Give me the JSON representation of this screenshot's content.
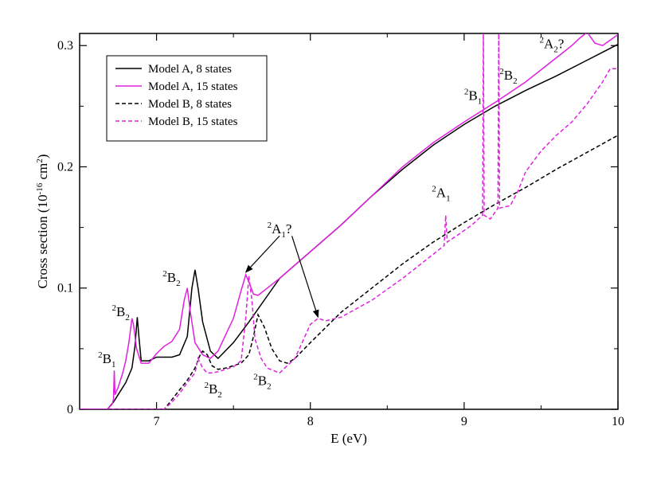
{
  "chart_data": {
    "type": "line",
    "xlabel": "E (eV)",
    "ylabel": {
      "main": "Cross section (10",
      "exp": "-16",
      "mid": " cm",
      "exp2": "2",
      "end": ")"
    },
    "xlim": [
      6.5,
      10
    ],
    "ylim": [
      0,
      0.31
    ],
    "xticks": [
      7,
      8,
      9,
      10
    ],
    "yticks": [
      0,
      0.1,
      0.2,
      0.3
    ],
    "xtick_labels": [
      "7",
      "8",
      "9",
      "10"
    ],
    "ytick_labels": [
      "0",
      "0.1",
      "0.2",
      "0.3"
    ],
    "grid": false,
    "legend_position": "top-left",
    "colors": {
      "black": "#000000",
      "magenta": "#e020e0"
    },
    "series": [
      {
        "name": "Model A, 8 states",
        "color": "#000000",
        "dash": "solid",
        "x": [
          6.68,
          6.72,
          6.76,
          6.8,
          6.84,
          6.86,
          6.875,
          6.885,
          6.9,
          6.95,
          7.0,
          7.05,
          7.1,
          7.15,
          7.2,
          7.23,
          7.25,
          7.27,
          7.3,
          7.35,
          7.4,
          7.5,
          7.6,
          7.7,
          7.8,
          8.0,
          8.2,
          8.4,
          8.6,
          8.8,
          9.0,
          9.2,
          9.4,
          9.6,
          9.8,
          10.0
        ],
        "y": [
          0.0,
          0.006,
          0.014,
          0.022,
          0.034,
          0.052,
          0.076,
          0.06,
          0.04,
          0.04,
          0.043,
          0.043,
          0.043,
          0.045,
          0.06,
          0.1,
          0.115,
          0.1,
          0.072,
          0.048,
          0.042,
          0.055,
          0.072,
          0.09,
          0.108,
          0.13,
          0.152,
          0.176,
          0.198,
          0.218,
          0.235,
          0.25,
          0.263,
          0.275,
          0.288,
          0.301
        ]
      },
      {
        "name": "Model A, 15 states",
        "color": "#e020e0",
        "dash": "solid",
        "x": [
          6.68,
          6.71,
          6.72,
          6.725,
          6.73,
          6.75,
          6.78,
          6.8,
          6.82,
          6.84,
          6.85,
          6.87,
          6.9,
          6.95,
          7.0,
          7.05,
          7.1,
          7.15,
          7.18,
          7.2,
          7.22,
          7.25,
          7.3,
          7.35,
          7.4,
          7.5,
          7.55,
          7.58,
          7.6,
          7.63,
          7.66,
          7.7,
          7.8,
          8.0,
          8.2,
          8.4,
          8.6,
          8.8,
          9.0,
          9.2,
          9.4,
          9.6,
          9.7,
          9.75,
          9.8,
          9.85,
          9.9,
          10.0
        ],
        "y": [
          0.0,
          0.004,
          0.008,
          0.032,
          0.012,
          0.018,
          0.03,
          0.04,
          0.055,
          0.075,
          0.07,
          0.05,
          0.038,
          0.038,
          0.046,
          0.052,
          0.056,
          0.066,
          0.09,
          0.1,
          0.08,
          0.055,
          0.045,
          0.042,
          0.048,
          0.075,
          0.098,
          0.111,
          0.105,
          0.095,
          0.094,
          0.098,
          0.108,
          0.13,
          0.152,
          0.176,
          0.2,
          0.22,
          0.237,
          0.253,
          0.27,
          0.29,
          0.3,
          0.306,
          0.311,
          0.302,
          0.3,
          0.309
        ]
      },
      {
        "name": "Model B, 8 states",
        "color": "#000000",
        "dash": "dashed",
        "x": [
          7.05,
          7.1,
          7.15,
          7.2,
          7.25,
          7.28,
          7.3,
          7.33,
          7.36,
          7.4,
          7.45,
          7.5,
          7.55,
          7.6,
          7.63,
          7.66,
          7.7,
          7.75,
          7.8,
          7.85,
          7.9,
          8.0,
          8.2,
          8.4,
          8.6,
          8.8,
          9.0,
          9.2,
          9.4,
          9.6,
          9.8,
          10.0
        ],
        "y": [
          0.0,
          0.008,
          0.016,
          0.024,
          0.034,
          0.044,
          0.048,
          0.045,
          0.036,
          0.033,
          0.034,
          0.036,
          0.038,
          0.045,
          0.06,
          0.078,
          0.068,
          0.05,
          0.04,
          0.038,
          0.042,
          0.055,
          0.08,
          0.1,
          0.12,
          0.138,
          0.154,
          0.169,
          0.183,
          0.198,
          0.212,
          0.226
        ]
      },
      {
        "name": "Model B, 15 states",
        "color": "#e020e0",
        "dash": "dashed",
        "x": [
          7.05,
          7.1,
          7.15,
          7.2,
          7.25,
          7.27,
          7.3,
          7.33,
          7.36,
          7.4,
          7.45,
          7.5,
          7.55,
          7.58,
          7.6,
          7.62,
          7.64,
          7.68,
          7.72,
          7.8,
          7.9,
          8.0,
          8.05,
          8.1,
          8.2,
          8.4,
          8.6,
          8.8,
          8.87,
          8.88,
          8.89,
          8.95,
          9.05,
          9.12,
          9.125,
          9.13,
          9.17,
          9.22,
          9.225,
          9.23,
          9.3,
          9.35,
          9.4,
          9.5,
          9.6,
          9.7,
          9.8,
          9.9,
          9.95,
          10.0
        ],
        "y": [
          0.0,
          0.006,
          0.013,
          0.022,
          0.03,
          0.042,
          0.034,
          0.03,
          0.03,
          0.031,
          0.033,
          0.035,
          0.04,
          0.075,
          0.11,
          0.09,
          0.058,
          0.042,
          0.034,
          0.03,
          0.042,
          0.07,
          0.075,
          0.073,
          0.076,
          0.09,
          0.108,
          0.128,
          0.135,
          0.16,
          0.138,
          0.143,
          0.152,
          0.16,
          0.315,
          0.16,
          0.157,
          0.166,
          0.315,
          0.166,
          0.168,
          0.18,
          0.196,
          0.213,
          0.226,
          0.237,
          0.252,
          0.27,
          0.281,
          0.281
        ]
      }
    ],
    "annotations": [
      {
        "label": "B",
        "pre": "2",
        "sub": "1",
        "suffix": "",
        "x": 6.62,
        "y": 0.038
      },
      {
        "label": "B",
        "pre": "2",
        "sub": "2",
        "suffix": "",
        "x": 6.71,
        "y": 0.077
      },
      {
        "label": "B",
        "pre": "2",
        "sub": "2",
        "suffix": "",
        "x": 7.04,
        "y": 0.105
      },
      {
        "label": "B",
        "pre": "2",
        "sub": "2",
        "suffix": "",
        "x": 7.31,
        "y": 0.013
      },
      {
        "label": "B",
        "pre": "2",
        "sub": "2",
        "suffix": "",
        "x": 7.63,
        "y": 0.02
      },
      {
        "label": "A",
        "pre": "2",
        "sub": "1",
        "suffix": "?",
        "x": 7.72,
        "y": 0.145
      },
      {
        "label": "A",
        "pre": "2",
        "sub": "1",
        "suffix": "",
        "x": 8.79,
        "y": 0.175
      },
      {
        "label": "B",
        "pre": "2",
        "sub": "1",
        "suffix": "",
        "x": 9.0,
        "y": 0.255
      },
      {
        "label": "B",
        "pre": "2",
        "sub": "2",
        "suffix": "",
        "x": 9.23,
        "y": 0.272
      },
      {
        "label": "A",
        "pre": "2",
        "sub": "2",
        "suffix": "?",
        "x": 9.49,
        "y": 0.298
      }
    ],
    "arrows": [
      {
        "from": [
          7.8,
          0.143
        ],
        "to": [
          7.58,
          0.113
        ]
      },
      {
        "from": [
          7.88,
          0.143
        ],
        "to": [
          8.05,
          0.076
        ]
      }
    ]
  }
}
